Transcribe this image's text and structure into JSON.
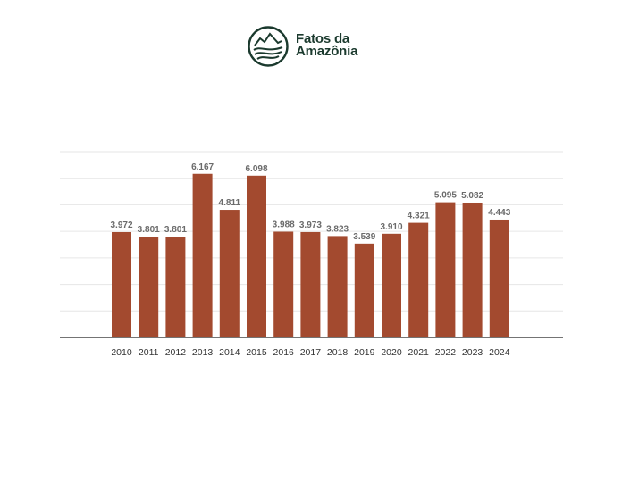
{
  "brand": {
    "line1": "Fatos da",
    "line2": "Amazônia",
    "logo_icon": "mountain-river-circle-icon",
    "color": "#1b3a2e"
  },
  "chart_data": {
    "type": "bar",
    "title": "",
    "xlabel": "",
    "ylabel": "",
    "categories": [
      "2010",
      "2011",
      "2012",
      "2013",
      "2014",
      "2015",
      "2016",
      "2017",
      "2018",
      "2019",
      "2020",
      "2021",
      "2022",
      "2023",
      "2024"
    ],
    "values": [
      3972,
      3801,
      3801,
      6167,
      4811,
      6098,
      3988,
      3973,
      3823,
      3539,
      3910,
      4321,
      5095,
      5082,
      4443
    ],
    "value_labels": [
      "3.972",
      "3.801",
      "3.801",
      "6.167",
      "4.811",
      "6.098",
      "3.988",
      "3.973",
      "3.823",
      "3.539",
      "3.910",
      "4.321",
      "5.095",
      "5.082",
      "4.443"
    ],
    "ylim": [
      0,
      7000
    ],
    "grid": true,
    "legend": "none",
    "bar_color": "#a34a2f"
  }
}
